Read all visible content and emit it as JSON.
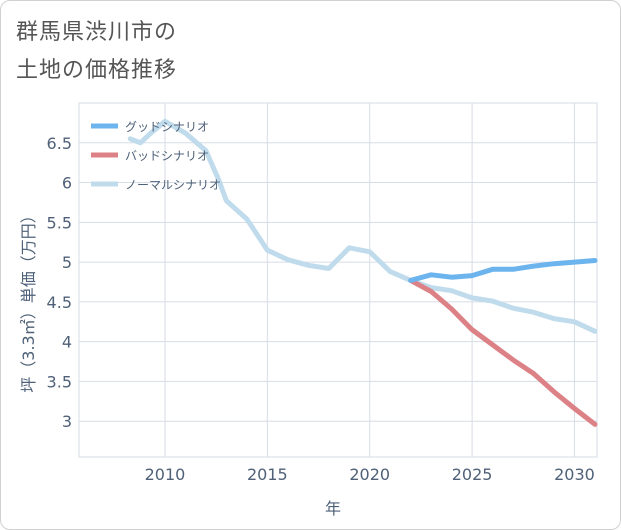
{
  "title_line1": "群馬県渋川市の",
  "title_line2": "土地の価格推移",
  "chart_data": {
    "type": "line",
    "xlabel": "年",
    "ylabel": "坪（3.3㎡）単価（万円）",
    "xlim": [
      2005.8,
      2031.1
    ],
    "ylim": [
      2.55,
      7.0
    ],
    "xticks": [
      2010,
      2015,
      2020,
      2025,
      2030
    ],
    "yticks": [
      3,
      3.5,
      4,
      4.5,
      5,
      5.5,
      6,
      6.5
    ],
    "grid": true,
    "legend_position": "top-left",
    "series": [
      {
        "name": "グッドシナリオ",
        "color": "#6cb4ee",
        "points": [
          [
            2022,
            4.77
          ],
          [
            2023,
            4.84
          ],
          [
            2024,
            4.81
          ],
          [
            2025,
            4.83
          ],
          [
            2026,
            4.91
          ],
          [
            2027,
            4.91
          ],
          [
            2028,
            4.95
          ],
          [
            2029,
            4.98
          ],
          [
            2030,
            5.0
          ],
          [
            2031,
            5.02
          ]
        ]
      },
      {
        "name": "バッドシナリオ",
        "color": "#dc8287",
        "points": [
          [
            2022,
            4.77
          ],
          [
            2023,
            4.63
          ],
          [
            2024,
            4.41
          ],
          [
            2025,
            4.15
          ],
          [
            2026,
            3.96
          ],
          [
            2027,
            3.77
          ],
          [
            2028,
            3.6
          ],
          [
            2029,
            3.37
          ],
          [
            2030,
            3.16
          ],
          [
            2031,
            2.96
          ]
        ]
      },
      {
        "name": "ノーマルシナリオ",
        "color": "#c0dcec",
        "points": [
          [
            2008.3,
            6.55
          ],
          [
            2008.8,
            6.5
          ],
          [
            2009.3,
            6.62
          ],
          [
            2010,
            6.77
          ],
          [
            2011,
            6.62
          ],
          [
            2012,
            6.4
          ],
          [
            2012.6,
            6.05
          ],
          [
            2013,
            5.77
          ],
          [
            2014,
            5.54
          ],
          [
            2015,
            5.15
          ],
          [
            2016,
            5.03
          ],
          [
            2017,
            4.96
          ],
          [
            2018,
            4.92
          ],
          [
            2019,
            5.18
          ],
          [
            2020,
            5.13
          ],
          [
            2021,
            4.88
          ],
          [
            2022,
            4.77
          ],
          [
            2023,
            4.68
          ],
          [
            2024,
            4.64
          ],
          [
            2025,
            4.55
          ],
          [
            2026,
            4.51
          ],
          [
            2027,
            4.42
          ],
          [
            2028,
            4.37
          ],
          [
            2029,
            4.29
          ],
          [
            2030,
            4.25
          ],
          [
            2031,
            4.13
          ]
        ]
      }
    ]
  }
}
